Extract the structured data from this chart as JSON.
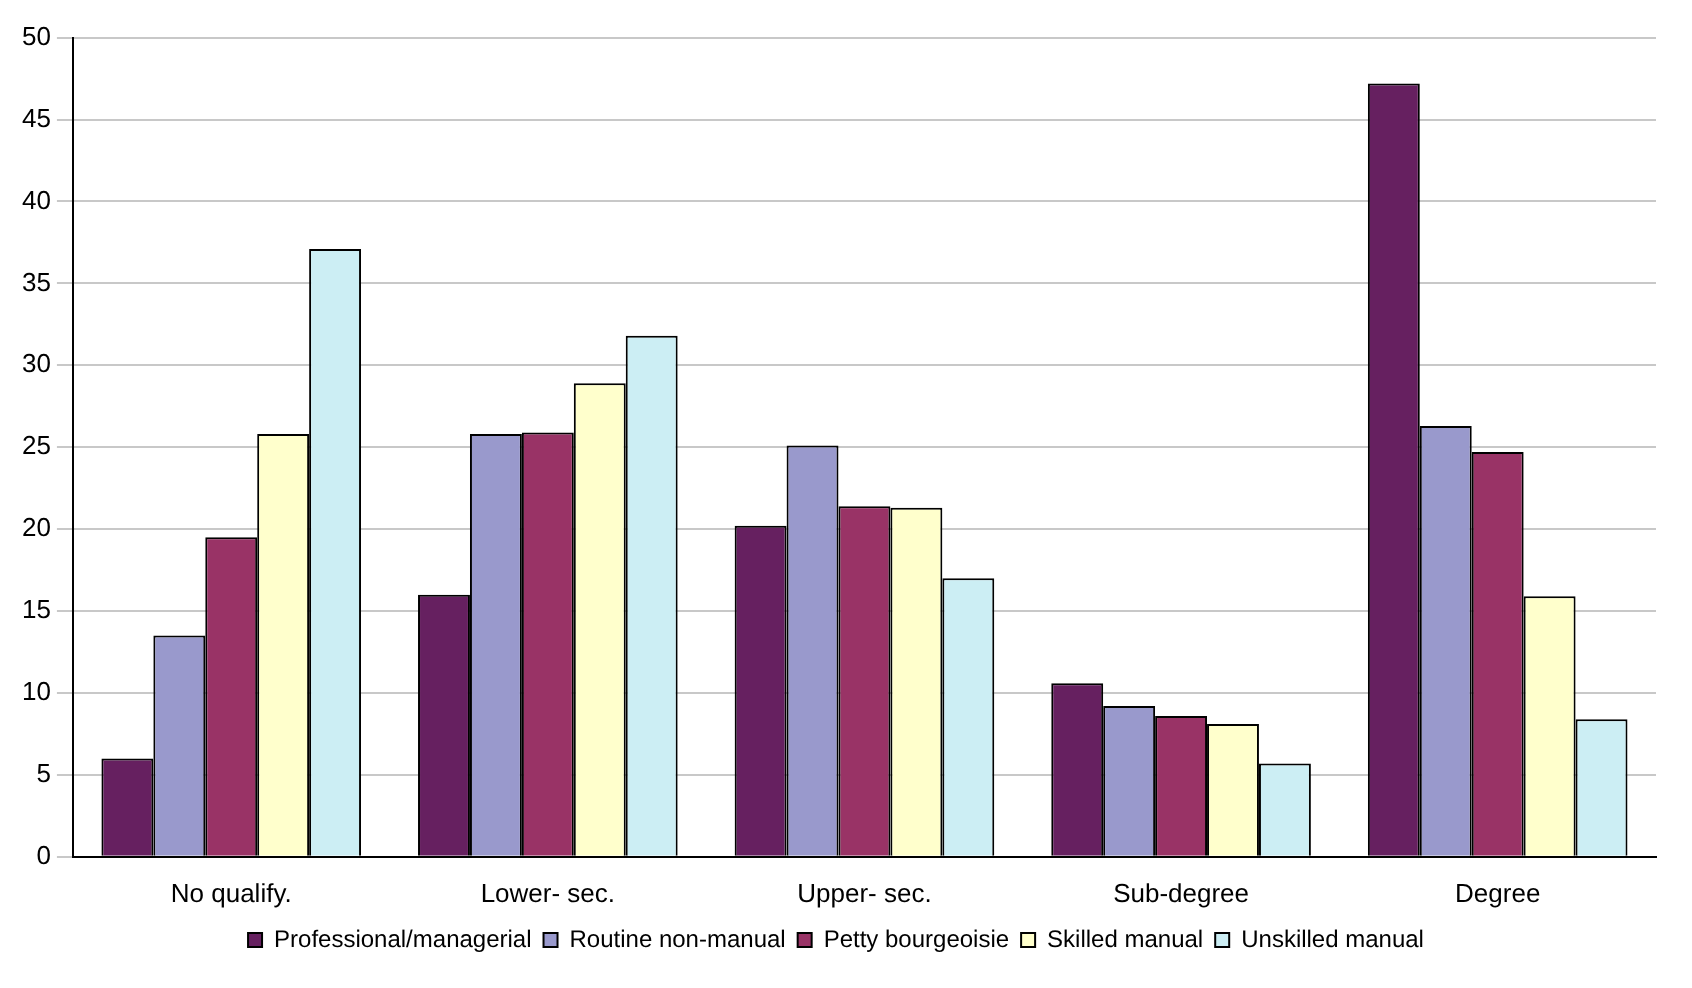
{
  "chart_data": {
    "type": "bar",
    "categories": [
      "No qualify.",
      "Lower- sec.",
      "Upper- sec.",
      "Sub-degree",
      "Degree"
    ],
    "series": [
      {
        "name": "Professional/managerial",
        "color": "#662060",
        "values": [
          6,
          16,
          20.2,
          10.6,
          47.2
        ]
      },
      {
        "name": "Routine non-manual",
        "color": "#9999cc",
        "values": [
          13.5,
          25.8,
          25.1,
          9.2,
          26.3
        ]
      },
      {
        "name": "Petty bourgeoisie",
        "color": "#993366",
        "values": [
          19.5,
          25.9,
          21.4,
          8.6,
          24.7
        ]
      },
      {
        "name": "Skilled manual",
        "color": "#ffffcc",
        "values": [
          25.8,
          28.9,
          21.3,
          8.1,
          15.9
        ]
      },
      {
        "name": "Unskilled manual",
        "color": "#cceef4",
        "values": [
          37.1,
          31.8,
          17,
          5.7,
          8.4
        ]
      }
    ],
    "ylim": [
      0,
      50
    ],
    "yticks": [
      0,
      5,
      10,
      15,
      20,
      25,
      30,
      35,
      40,
      45,
      50
    ],
    "grid": "y",
    "legend": "bottom"
  }
}
